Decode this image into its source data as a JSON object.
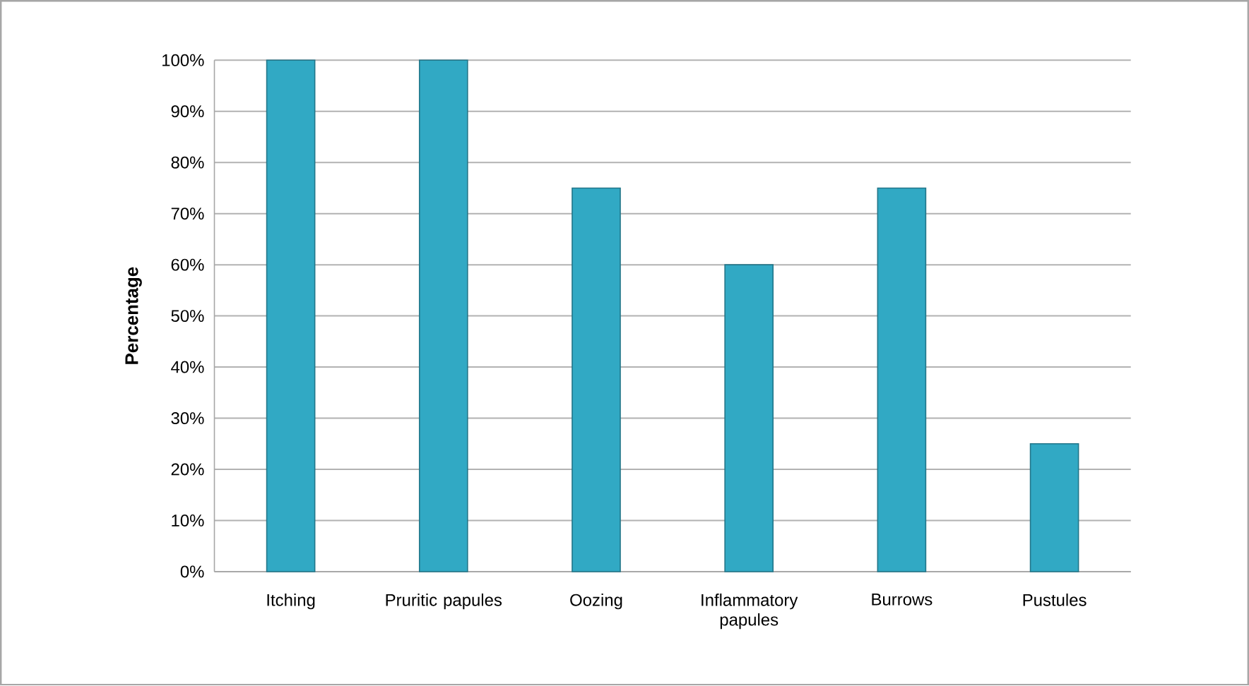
{
  "chart_data": {
    "type": "bar",
    "ylabel": "Percentage",
    "categories": [
      "Itching",
      "Pruritic papules",
      "Oozing",
      "Inflammatory papules",
      "Burrows",
      "Pustules"
    ],
    "values": [
      100,
      100,
      75,
      60,
      75,
      25
    ],
    "color": "#31a9c4",
    "ylim": [
      0,
      100
    ],
    "yticks": [
      {
        "value": 0,
        "label": "0%"
      },
      {
        "value": 10,
        "label": "10%"
      },
      {
        "value": 20,
        "label": "20%"
      },
      {
        "value": 30,
        "label": "30%"
      },
      {
        "value": 40,
        "label": "40%"
      },
      {
        "value": 50,
        "label": "50%"
      },
      {
        "value": 60,
        "label": "60%"
      },
      {
        "value": 70,
        "label": "70%"
      },
      {
        "value": 80,
        "label": "80%"
      },
      {
        "value": 90,
        "label": "90%"
      },
      {
        "value": 100,
        "label": "100%"
      }
    ],
    "grid": "y"
  }
}
